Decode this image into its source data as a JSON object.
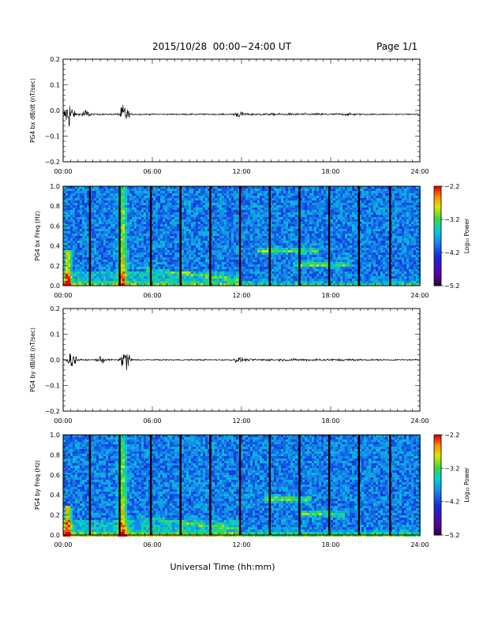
{
  "header": {
    "title": "2015/10/28  00:00−24:00 UT",
    "page": "Page 1/1"
  },
  "xlabel": "Universal Time (hh:mm)",
  "chart_data": [
    {
      "type": "line",
      "ylabel": "PG4 bx dB/dt (nT/sec)",
      "xlim": [
        0,
        24
      ],
      "ylim": [
        -0.2,
        0.2
      ],
      "xticks": [
        "00:00",
        "06:00",
        "12:00",
        "18:00",
        "24:00"
      ],
      "yticks": [
        "0.2",
        "0.1",
        "0.0",
        "−0.1",
        "−0.2"
      ],
      "baseline": -0.015,
      "bursts": [
        {
          "x": 0.4,
          "amp": 0.06
        },
        {
          "x": 1.5,
          "amp": 0.02
        },
        {
          "x": 4.1,
          "amp": 0.045
        },
        {
          "x": 11.8,
          "amp": 0.012
        }
      ]
    },
    {
      "type": "heatmap",
      "ylabel": "PG4 bx Freq (Hz)",
      "xlim": [
        0,
        24
      ],
      "ylim": [
        0,
        1.0
      ],
      "xticks": [
        "00:00",
        "06:00",
        "12:00",
        "18:00",
        "24:00"
      ],
      "yticks": [
        "1.0",
        "0.8",
        "0.6",
        "0.4",
        "0.2",
        "0.0"
      ],
      "colorbar": {
        "label": "Log₁₀ Power",
        "ticks": [
          "−2.2",
          "−3.2",
          "−4.2",
          "−5.2"
        ],
        "range": [
          -5.2,
          -2.2
        ]
      },
      "gaps_hours": [
        1.8,
        3.8,
        5.9,
        7.9,
        9.9,
        11.9,
        13.9,
        15.9,
        17.9,
        19.9,
        22.0
      ],
      "features": [
        {
          "kind": "broadband",
          "x": 4.0,
          "fmax": 1.0
        },
        {
          "kind": "broadband",
          "x": 0.3,
          "fmax": 0.35
        },
        {
          "kind": "band",
          "x0": 13.0,
          "x1": 17.2,
          "f": 0.35
        },
        {
          "kind": "band",
          "x0": 15.5,
          "x1": 19.2,
          "f": 0.21
        }
      ]
    },
    {
      "type": "line",
      "ylabel": "PG4 by dB/dt (nT/sec)",
      "xlim": [
        0,
        24
      ],
      "ylim": [
        -0.2,
        0.2
      ],
      "xticks": [
        "00:00",
        "06:00",
        "12:00",
        "18:00",
        "24:00"
      ],
      "yticks": [
        "0.2",
        "0.1",
        "0.0",
        "−0.1",
        "−0.2"
      ],
      "baseline": 0.0,
      "bursts": [
        {
          "x": 0.6,
          "amp": 0.035
        },
        {
          "x": 2.6,
          "amp": 0.012
        },
        {
          "x": 4.2,
          "amp": 0.05
        },
        {
          "x": 11.8,
          "amp": 0.01
        }
      ]
    },
    {
      "type": "heatmap",
      "ylabel": "PG4 by Freq (Hz)",
      "xlim": [
        0,
        24
      ],
      "ylim": [
        0,
        1.0
      ],
      "xticks": [
        "00:00",
        "06:00",
        "12:00",
        "18:00",
        "24:00"
      ],
      "yticks": [
        "1.0",
        "0.8",
        "0.6",
        "0.4",
        "0.2",
        "0.0"
      ],
      "colorbar": {
        "label": "Log₁₀ Power",
        "ticks": [
          "−2.2",
          "−3.2",
          "−4.2",
          "−5.2"
        ],
        "range": [
          -5.2,
          -2.2
        ]
      },
      "gaps_hours": [
        1.8,
        3.8,
        5.9,
        7.9,
        9.9,
        11.9,
        13.9,
        15.9,
        17.9,
        19.9,
        22.0
      ],
      "features": [
        {
          "kind": "broadband",
          "x": 4.0,
          "fmax": 1.0
        },
        {
          "kind": "broadband",
          "x": 0.3,
          "fmax": 0.3
        },
        {
          "kind": "band",
          "x0": 13.5,
          "x1": 16.8,
          "f": 0.36
        },
        {
          "kind": "band",
          "x0": 16.0,
          "x1": 19.0,
          "f": 0.21
        }
      ]
    }
  ]
}
